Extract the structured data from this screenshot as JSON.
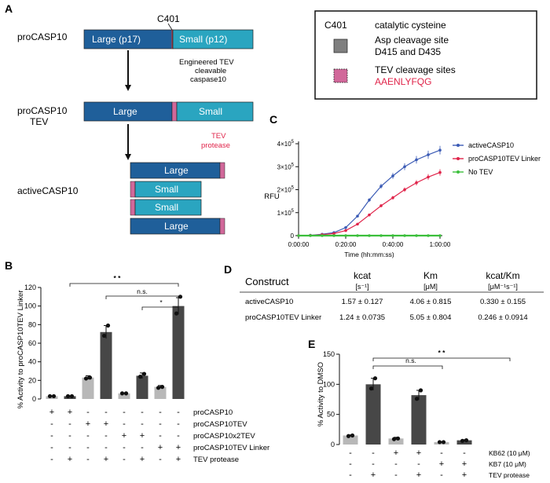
{
  "colors": {
    "large": "#1f5f9a",
    "small": "#2aa5c0",
    "pink": "#d1689a",
    "gray_site": "#7f7f7f",
    "red_text": "#e0244a",
    "active_series": "#3b5bb5",
    "linker_series": "#e0244a",
    "no_tev_series": "#3cbf3c",
    "bar_light": "#b8b8b8",
    "bar_dark": "#474747"
  },
  "panel_a": {
    "letter": "A",
    "c401": "C401",
    "procasp10": "proCASP10",
    "large_p17": "Large (p17)",
    "small_p12": "Small (p12)",
    "arrow_note": [
      "Engineered TEV",
      "cleavable",
      "caspase10"
    ],
    "procasp10tev": [
      "proCASP10",
      "TEV"
    ],
    "large": "Large",
    "small": "Small",
    "tev_protease": [
      "TEV",
      "protease"
    ],
    "activecasp10": "activeCASP10"
  },
  "legend": {
    "c401": "C401",
    "catalytic": "catalytic cysteine",
    "asp_site": [
      "Asp cleavage site",
      "D415 and D435"
    ],
    "tev_sites": "TEV cleavage sites",
    "tev_seq": "AAENLYFQG"
  },
  "panel_b": {
    "letter": "B",
    "ylabel": "% Activity to proCASP10TEV Linker",
    "yticks": [
      "0",
      "20",
      "40",
      "60",
      "80",
      "100",
      "120"
    ],
    "sig": [
      "* *",
      "n.s.",
      "*"
    ],
    "rows": [
      {
        "label": "proCASP10",
        "signs": [
          "+",
          "+",
          "-",
          "-",
          "-",
          "-",
          "-",
          "-"
        ]
      },
      {
        "label": "proCASP10TEV",
        "signs": [
          "-",
          "-",
          "+",
          "+",
          "-",
          "-",
          "-",
          "-"
        ]
      },
      {
        "label": "proCASP10x2TEV",
        "signs": [
          "-",
          "-",
          "-",
          "-",
          "+",
          "+",
          "-",
          "-"
        ]
      },
      {
        "label": "proCASP10TEV Linker",
        "signs": [
          "-",
          "-",
          "-",
          "-",
          "-",
          "-",
          "+",
          "+"
        ]
      },
      {
        "label": "TEV protease",
        "signs": [
          "-",
          "+",
          "-",
          "+",
          "-",
          "+",
          "-",
          "+"
        ]
      }
    ]
  },
  "panel_c": {
    "letter": "C",
    "ylabel": "RFU",
    "xlabel": "Time (hh:mm:ss)",
    "xticks": [
      "0:00:00",
      "0:20:00",
      "0:40:00",
      "1:00:00"
    ],
    "ytick_mant": [
      "0",
      "1",
      "2",
      "3",
      "4"
    ],
    "ytick_exp": "5",
    "legend": [
      "activeCASP10",
      "proCASP10TEV Linker",
      "No TEV"
    ]
  },
  "panel_d": {
    "letter": "D",
    "headers": {
      "construct": "Construct",
      "kcat_sym": "kcat",
      "kcat_unit": "[s⁻¹]",
      "km_sym": "Km",
      "km_unit": "[μM]",
      "ratio_sym": "kcat/Km",
      "ratio_unit": "[μM⁻¹s⁻¹]"
    },
    "rows": [
      {
        "construct": "activeCASP10",
        "kcat": "1.57 ± 0.127",
        "km": "4.06 ± 0.815",
        "ratio": "0.330 ± 0.155"
      },
      {
        "construct": "proCASP10TEV Linker",
        "kcat": "1.24 ± 0.0735",
        "km": "5.05 ± 0.804",
        "ratio": "0.246 ± 0.0914"
      }
    ]
  },
  "panel_e": {
    "letter": "E",
    "ylabel": "% Activity to DMSO",
    "yticks": [
      "0",
      "50",
      "100",
      "150"
    ],
    "sig": [
      "n.s.",
      "* *"
    ],
    "rows": [
      {
        "label": "KB62 (10 μM)",
        "signs": [
          "-",
          "-",
          "+",
          "+",
          "-",
          "-"
        ]
      },
      {
        "label": "KB7 (10 μM)",
        "signs": [
          "-",
          "-",
          "-",
          "-",
          "+",
          "+"
        ]
      },
      {
        "label": "TEV protease",
        "signs": [
          "-",
          "+",
          "-",
          "+",
          "-",
          "+"
        ]
      }
    ]
  },
  "chart_data": [
    {
      "type": "bar",
      "panel": "B",
      "ylabel": "% Activity to proCASP10TEV Linker",
      "ylim": [
        0,
        120
      ],
      "values": [
        3,
        3,
        23,
        72,
        6,
        25,
        13,
        100
      ],
      "errors": [
        0.5,
        0.5,
        2,
        7,
        0.5,
        3,
        1.5,
        9
      ],
      "points": [
        [
          3,
          3
        ],
        [
          3,
          3
        ],
        [
          22,
          23
        ],
        [
          68,
          79
        ],
        [
          6,
          6
        ],
        [
          24,
          27
        ],
        [
          12,
          13
        ],
        [
          92,
          110
        ]
      ],
      "shade": [
        "light",
        "dark",
        "light",
        "dark",
        "light",
        "dark",
        "light",
        "dark"
      ]
    },
    {
      "type": "line",
      "panel": "C",
      "xlabel": "Time (hh:mm:ss)",
      "ylabel": "RFU",
      "xlim_min": [
        0,
        60
      ],
      "ylim": [
        0,
        400000
      ],
      "series": [
        {
          "name": "activeCASP10",
          "x": [
            0,
            5,
            10,
            15,
            20,
            25,
            30,
            35,
            40,
            45,
            50,
            55,
            60
          ],
          "y": [
            0,
            1500,
            6000,
            13000,
            35000,
            85000,
            155000,
            215000,
            260000,
            300000,
            330000,
            352000,
            372000
          ]
        },
        {
          "name": "proCASP10TEV Linker",
          "x": [
            0,
            5,
            10,
            15,
            20,
            25,
            30,
            35,
            40,
            45,
            50,
            55,
            60
          ],
          "y": [
            0,
            800,
            4000,
            9000,
            22000,
            50000,
            90000,
            130000,
            165000,
            200000,
            230000,
            255000,
            275000
          ]
        },
        {
          "name": "No TEV",
          "x": [
            0,
            5,
            10,
            15,
            20,
            25,
            30,
            35,
            40,
            45,
            50,
            55,
            60
          ],
          "y": [
            0,
            0,
            0,
            0,
            0,
            0,
            0,
            0,
            0,
            0,
            0,
            0,
            0
          ]
        }
      ]
    },
    {
      "type": "bar",
      "panel": "E",
      "ylabel": "% Activity to DMSO",
      "ylim": [
        0,
        150
      ],
      "values": [
        15,
        100,
        10,
        82,
        4,
        7
      ],
      "errors": [
        1,
        10,
        2,
        8,
        0.5,
        1
      ],
      "points": [
        [
          14,
          15
        ],
        [
          93,
          110
        ],
        [
          9,
          10
        ],
        [
          76,
          90
        ],
        [
          4,
          4
        ],
        [
          6,
          7
        ]
      ],
      "shade": [
        "light",
        "dark",
        "light",
        "dark",
        "light",
        "dark"
      ]
    }
  ]
}
